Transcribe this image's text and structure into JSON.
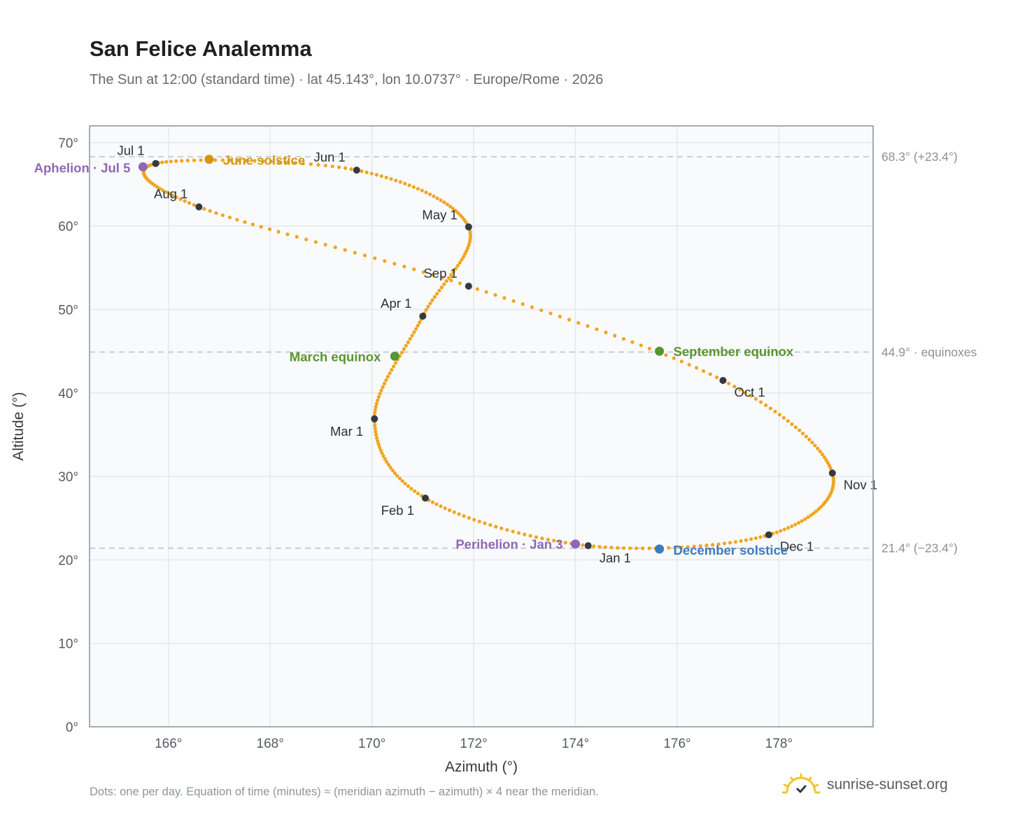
{
  "title": "San Felice Analemma",
  "subtitle": "The Sun at 12:00 (standard time) · lat 45.143°, lon 10.0737° · Europe/Rome · 2026",
  "footnote": "Dots: one per day. Equation of time (minutes) ≈ (meridian azimuth − azimuth) × 4 near the meridian.",
  "brand": {
    "text": "sunrise-sunset.org",
    "icon": "sun-logo-icon"
  },
  "colors": {
    "curve": "#f0a520",
    "month_dot": "#333a42",
    "solstice_june": "#d4960c",
    "solstice_december": "#3a7cc0",
    "equinox": "#5a9432",
    "apsis": "#8e68b4",
    "reference_line": "#c6cbd0",
    "plot_background": "#f8fafc",
    "grid": "#e4e8ec",
    "frame": "#a3acb7"
  },
  "chart_data": {
    "type": "scatter",
    "title": "San Felice Analemma",
    "xlabel": "Azimuth (°)",
    "ylabel": "Altitude (°)",
    "xlim": [
      164.45,
      179.85
    ],
    "ylim": [
      0,
      72
    ],
    "xticks": [
      166,
      168,
      170,
      172,
      174,
      176,
      178
    ],
    "xtick_labels": [
      "166°",
      "168°",
      "170°",
      "172°",
      "174°",
      "176°",
      "178°"
    ],
    "yticks": [
      0,
      10,
      20,
      30,
      40,
      50,
      60,
      70
    ],
    "ytick_labels": [
      "0°",
      "10°",
      "20°",
      "30°",
      "40°",
      "50°",
      "60°",
      "70°"
    ],
    "grid": true,
    "months": [
      {
        "label": "Jan 1",
        "az": 174.25,
        "alt": 21.7
      },
      {
        "label": "Feb 1",
        "az": 171.05,
        "alt": 27.4
      },
      {
        "label": "Mar 1",
        "az": 170.05,
        "alt": 36.9
      },
      {
        "label": "Apr 1",
        "az": 171.0,
        "alt": 49.2
      },
      {
        "label": "May 1",
        "az": 171.9,
        "alt": 59.9
      },
      {
        "label": "Jun 1",
        "az": 169.7,
        "alt": 66.7
      },
      {
        "label": "Jul 1",
        "az": 165.75,
        "alt": 67.5
      },
      {
        "label": "Aug 1",
        "az": 166.6,
        "alt": 62.3
      },
      {
        "label": "Sep 1",
        "az": 171.9,
        "alt": 52.8
      },
      {
        "label": "Oct 1",
        "az": 176.9,
        "alt": 41.5
      },
      {
        "label": "Nov 1",
        "az": 179.05,
        "alt": 30.4
      },
      {
        "label": "Dec 1",
        "az": 177.8,
        "alt": 23.0
      }
    ],
    "events": [
      {
        "label": "June solstice",
        "az": 166.8,
        "alt": 68.0,
        "kind": "solstice_june"
      },
      {
        "label": "December solstice",
        "az": 175.65,
        "alt": 21.3,
        "kind": "solstice_december"
      },
      {
        "label": "March equinox",
        "az": 170.45,
        "alt": 44.4,
        "kind": "equinox"
      },
      {
        "label": "September equinox",
        "az": 175.65,
        "alt": 45.0,
        "kind": "equinox"
      },
      {
        "label": "Aphelion · Jul 5",
        "az": 165.5,
        "alt": 67.1,
        "kind": "apsis"
      },
      {
        "label": "Perihelion · Jan 3",
        "az": 174.0,
        "alt": 21.9,
        "kind": "apsis"
      }
    ],
    "reference_lines": [
      {
        "alt": 68.3,
        "label": "68.3° (+23.4°)"
      },
      {
        "alt": 44.9,
        "label": "44.9° · equinoxes"
      },
      {
        "alt": 21.4,
        "label": "21.4° (−23.4°)"
      }
    ]
  }
}
